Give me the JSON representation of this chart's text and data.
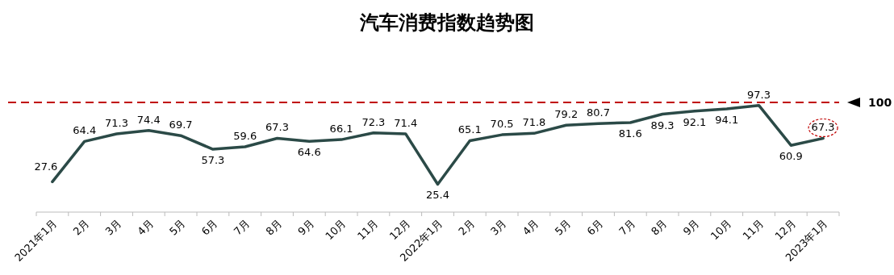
{
  "chart_data": {
    "type": "line",
    "title": "汽车消费指数趋势图",
    "categories": [
      "2021年1月",
      "2月",
      "3月",
      "4月",
      "5月",
      "6月",
      "7月",
      "8月",
      "9月",
      "10月",
      "11月",
      "12月",
      "2022年1月",
      "2月",
      "3月",
      "4月",
      "5月",
      "6月",
      "7月",
      "8月",
      "9月",
      "10月",
      "11月",
      "12月",
      "2023年1月"
    ],
    "series": [
      {
        "color": "#2b4a47",
        "values": [
          27.6,
          64.4,
          71.3,
          74.4,
          69.7,
          57.3,
          59.6,
          67.3,
          64.6,
          66.1,
          72.3,
          71.4,
          25.4,
          65.1,
          70.5,
          71.8,
          79.2,
          80.7,
          81.6,
          89.3,
          92.1,
          94.1,
          97.3,
          60.9,
          67.3
        ]
      }
    ],
    "tick_labels": "x",
    "data_labels": true,
    "marker": "none",
    "line_style": "solid",
    "ref_lines": [
      {
        "axis": "y",
        "value": 100,
        "label": "100",
        "color": "#c00000",
        "line_style": "dashed"
      }
    ]
  }
}
